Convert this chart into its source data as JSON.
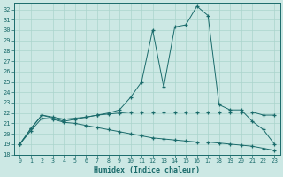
{
  "xlabel": "Humidex (Indice chaleur)",
  "bg_color": "#cce8e4",
  "line_color": "#1a6b6b",
  "grid_color": "#aad4cc",
  "xlim": [
    -0.5,
    23.5
  ],
  "ylim": [
    18,
    32.6
  ],
  "yticks": [
    18,
    19,
    20,
    21,
    22,
    23,
    24,
    25,
    26,
    27,
    28,
    29,
    30,
    31,
    32
  ],
  "xticks": [
    0,
    1,
    2,
    3,
    4,
    5,
    6,
    7,
    8,
    9,
    10,
    11,
    12,
    13,
    14,
    15,
    16,
    17,
    18,
    19,
    20,
    21,
    22,
    23
  ],
  "upper": [
    19.0,
    20.5,
    21.8,
    21.5,
    21.2,
    21.4,
    21.6,
    21.8,
    22.0,
    22.3,
    23.5,
    25.0,
    30.0,
    24.5,
    30.3,
    30.5,
    32.3,
    31.4,
    22.8,
    22.3,
    22.3,
    21.2,
    20.4,
    19.0
  ],
  "middle": [
    19.0,
    20.5,
    21.8,
    21.6,
    21.4,
    21.5,
    21.6,
    21.8,
    21.9,
    22.0,
    22.1,
    22.1,
    22.1,
    22.1,
    22.1,
    22.1,
    22.1,
    22.1,
    22.1,
    22.1,
    22.1,
    22.1,
    21.8,
    21.8
  ],
  "lower": [
    19.0,
    20.3,
    21.5,
    21.4,
    21.1,
    21.0,
    20.8,
    20.6,
    20.4,
    20.2,
    20.0,
    19.8,
    19.6,
    19.5,
    19.4,
    19.3,
    19.2,
    19.2,
    19.1,
    19.0,
    18.9,
    18.8,
    18.6,
    18.4
  ]
}
